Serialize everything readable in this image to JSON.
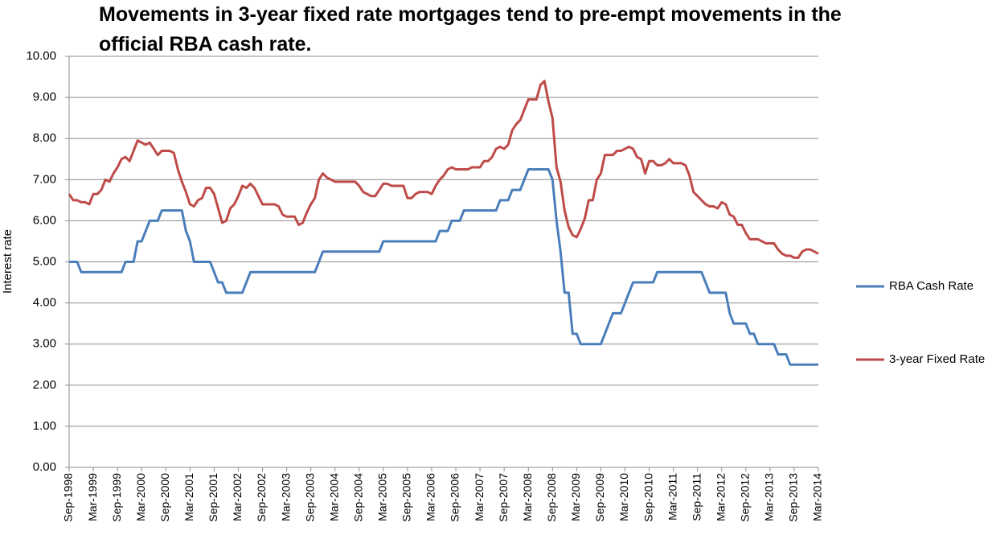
{
  "chart_data": {
    "type": "line",
    "title": "Movements in 3-year fixed rate mortgages tend to pre-empt movements in the official RBA cash rate.",
    "ylabel": "Interest rate",
    "categories": [
      "Sep-1998",
      null,
      null,
      null,
      null,
      null,
      "Mar-1999",
      null,
      null,
      null,
      null,
      null,
      "Sep-1999",
      null,
      null,
      null,
      null,
      null,
      "Mar-2000",
      null,
      null,
      null,
      null,
      null,
      "Sep-2000",
      null,
      null,
      null,
      null,
      null,
      "Mar-2001",
      null,
      null,
      null,
      null,
      null,
      "Sep-2001",
      null,
      null,
      null,
      null,
      null,
      "Mar-2002",
      null,
      null,
      null,
      null,
      null,
      "Sep-2002",
      null,
      null,
      null,
      null,
      null,
      "Mar-2003",
      null,
      null,
      null,
      null,
      null,
      "Sep-2003",
      null,
      null,
      null,
      null,
      null,
      "Mar-2004",
      null,
      null,
      null,
      null,
      null,
      "Sep-2004",
      null,
      null,
      null,
      null,
      null,
      "Mar-2005",
      null,
      null,
      null,
      null,
      null,
      "Sep-2005",
      null,
      null,
      null,
      null,
      null,
      "Mar-2006",
      null,
      null,
      null,
      null,
      null,
      "Sep-2006",
      null,
      null,
      null,
      null,
      null,
      "Mar-2007",
      null,
      null,
      null,
      null,
      null,
      "Sep-2007",
      null,
      null,
      null,
      null,
      null,
      "Mar-2008",
      null,
      null,
      null,
      null,
      null,
      "Sep-2008",
      null,
      null,
      null,
      null,
      null,
      "Mar-2009",
      null,
      null,
      null,
      null,
      null,
      "Sep-2009",
      null,
      null,
      null,
      null,
      null,
      "Mar-2010",
      null,
      null,
      null,
      null,
      null,
      "Sep-2010",
      null,
      null,
      null,
      null,
      null,
      "Mar-2011",
      null,
      null,
      null,
      null,
      null,
      "Sep-2011",
      null,
      null,
      null,
      null,
      null,
      "Mar-2012",
      null,
      null,
      null,
      null,
      null,
      "Sep-2012",
      null,
      null,
      null,
      null,
      null,
      "Mar-2013",
      null,
      null,
      null,
      null,
      null,
      "Sep-2013",
      null,
      null,
      null,
      null,
      null,
      "Mar-2014"
    ],
    "series": [
      {
        "name": "RBA Cash Rate",
        "color": "#4a7ebb",
        "values": [
          5.0,
          5.0,
          5.0,
          4.75,
          4.75,
          4.75,
          4.75,
          4.75,
          4.75,
          4.75,
          4.75,
          4.75,
          4.75,
          4.75,
          5.0,
          5.0,
          5.0,
          5.5,
          5.5,
          5.75,
          6.0,
          6.0,
          6.0,
          6.25,
          6.25,
          6.25,
          6.25,
          6.25,
          6.25,
          5.75,
          5.5,
          5.0,
          5.0,
          5.0,
          5.0,
          5.0,
          4.75,
          4.5,
          4.5,
          4.25,
          4.25,
          4.25,
          4.25,
          4.25,
          4.5,
          4.75,
          4.75,
          4.75,
          4.75,
          4.75,
          4.75,
          4.75,
          4.75,
          4.75,
          4.75,
          4.75,
          4.75,
          4.75,
          4.75,
          4.75,
          4.75,
          4.75,
          5.0,
          5.25,
          5.25,
          5.25,
          5.25,
          5.25,
          5.25,
          5.25,
          5.25,
          5.25,
          5.25,
          5.25,
          5.25,
          5.25,
          5.25,
          5.25,
          5.5,
          5.5,
          5.5,
          5.5,
          5.5,
          5.5,
          5.5,
          5.5,
          5.5,
          5.5,
          5.5,
          5.5,
          5.5,
          5.5,
          5.75,
          5.75,
          5.75,
          6.0,
          6.0,
          6.0,
          6.25,
          6.25,
          6.25,
          6.25,
          6.25,
          6.25,
          6.25,
          6.25,
          6.25,
          6.5,
          6.5,
          6.5,
          6.75,
          6.75,
          6.75,
          7.0,
          7.25,
          7.25,
          7.25,
          7.25,
          7.25,
          7.25,
          7.0,
          6.0,
          5.25,
          4.25,
          4.25,
          3.25,
          3.25,
          3.0,
          3.0,
          3.0,
          3.0,
          3.0,
          3.0,
          3.25,
          3.5,
          3.75,
          3.75,
          3.75,
          4.0,
          4.25,
          4.5,
          4.5,
          4.5,
          4.5,
          4.5,
          4.5,
          4.75,
          4.75,
          4.75,
          4.75,
          4.75,
          4.75,
          4.75,
          4.75,
          4.75,
          4.75,
          4.75,
          4.75,
          4.5,
          4.25,
          4.25,
          4.25,
          4.25,
          4.25,
          3.75,
          3.5,
          3.5,
          3.5,
          3.5,
          3.25,
          3.25,
          3.0,
          3.0,
          3.0,
          3.0,
          3.0,
          2.75,
          2.75,
          2.75,
          2.5,
          2.5,
          2.5,
          2.5,
          2.5,
          2.5,
          2.5,
          2.5
        ]
      },
      {
        "name": "3-year Fixed Rate",
        "color": "#be4b48",
        "values": [
          6.65,
          6.5,
          6.5,
          6.45,
          6.45,
          6.4,
          6.65,
          6.65,
          6.75,
          7.0,
          6.95,
          7.15,
          7.3,
          7.5,
          7.55,
          7.45,
          7.7,
          7.95,
          7.9,
          7.85,
          7.9,
          7.75,
          7.6,
          7.7,
          7.7,
          7.7,
          7.65,
          7.25,
          6.95,
          6.7,
          6.4,
          6.35,
          6.5,
          6.55,
          6.8,
          6.8,
          6.65,
          6.3,
          5.95,
          6.0,
          6.3,
          6.4,
          6.6,
          6.85,
          6.8,
          6.9,
          6.8,
          6.6,
          6.4,
          6.4,
          6.4,
          6.4,
          6.35,
          6.15,
          6.1,
          6.1,
          6.1,
          5.9,
          5.95,
          6.2,
          6.4,
          6.55,
          7.0,
          7.15,
          7.05,
          7.0,
          6.95,
          6.95,
          6.95,
          6.95,
          6.95,
          6.95,
          6.85,
          6.7,
          6.65,
          6.6,
          6.6,
          6.75,
          6.9,
          6.9,
          6.85,
          6.85,
          6.85,
          6.85,
          6.55,
          6.55,
          6.65,
          6.7,
          6.7,
          6.7,
          6.65,
          6.85,
          7.0,
          7.1,
          7.25,
          7.3,
          7.25,
          7.25,
          7.25,
          7.25,
          7.3,
          7.3,
          7.3,
          7.45,
          7.45,
          7.55,
          7.75,
          7.8,
          7.75,
          7.85,
          8.2,
          8.35,
          8.45,
          8.7,
          8.95,
          8.95,
          8.95,
          9.3,
          9.4,
          8.9,
          8.5,
          7.3,
          6.95,
          6.25,
          5.85,
          5.65,
          5.6,
          5.8,
          6.05,
          6.5,
          6.5,
          7.0,
          7.15,
          7.6,
          7.6,
          7.6,
          7.7,
          7.7,
          7.75,
          7.8,
          7.75,
          7.55,
          7.5,
          7.15,
          7.45,
          7.45,
          7.35,
          7.35,
          7.4,
          7.5,
          7.4,
          7.4,
          7.4,
          7.35,
          7.1,
          6.7,
          6.6,
          6.5,
          6.4,
          6.35,
          6.35,
          6.3,
          6.45,
          6.4,
          6.15,
          6.1,
          5.9,
          5.9,
          5.7,
          5.55,
          5.55,
          5.55,
          5.5,
          5.45,
          5.45,
          5.45,
          5.3,
          5.2,
          5.15,
          5.15,
          5.1,
          5.1,
          5.25,
          5.3,
          5.3,
          5.25,
          5.2
        ]
      }
    ],
    "ylim": [
      0,
      10
    ],
    "yticks": [
      {
        "value": 0,
        "label": "0.00"
      },
      {
        "value": 1,
        "label": "1.00"
      },
      {
        "value": 2,
        "label": "2.00"
      },
      {
        "value": 3,
        "label": "3.00"
      },
      {
        "value": 4,
        "label": "4.00"
      },
      {
        "value": 5,
        "label": "5.00"
      },
      {
        "value": 6,
        "label": "6.00"
      },
      {
        "value": 7,
        "label": "7.00"
      },
      {
        "value": 8,
        "label": "8.00"
      },
      {
        "value": 9,
        "label": "9.00"
      },
      {
        "value": 10,
        "label": "10.00"
      }
    ],
    "grid": true,
    "legend": "right"
  }
}
